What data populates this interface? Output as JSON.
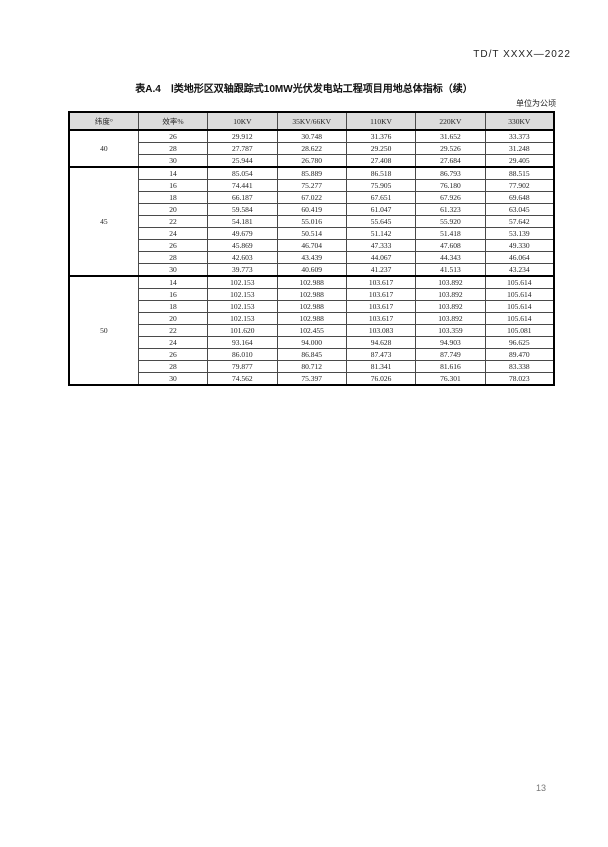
{
  "page": {
    "doc_ref": "TD/T XXXX—2022",
    "page_number": "13"
  },
  "colors": {
    "header_row_bg": "#dcdcdc",
    "table_border": "#000000",
    "text": "#1c1c1c",
    "page_number_text": "#777777"
  },
  "table": {
    "title": "表A.4　Ⅰ类地形区双轴跟踪式10MW光伏发电站工程项目用地总体指标（续）",
    "unit_note": "单位为公顷",
    "columns": [
      "纬度°",
      "效率%",
      "10KV",
      "35KV/66KV",
      "110KV",
      "220KV",
      "330KV"
    ],
    "groups": [
      {
        "latitude": "40",
        "rows": [
          [
            "26",
            "29.912",
            "30.748",
            "31.376",
            "31.652",
            "33.373"
          ],
          [
            "28",
            "27.787",
            "28.622",
            "29.250",
            "29.526",
            "31.248"
          ],
          [
            "30",
            "25.944",
            "26.780",
            "27.408",
            "27.684",
            "29.405"
          ]
        ]
      },
      {
        "latitude": "45",
        "rows": [
          [
            "14",
            "85.054",
            "85.889",
            "86.518",
            "86.793",
            "88.515"
          ],
          [
            "16",
            "74.441",
            "75.277",
            "75.905",
            "76.180",
            "77.902"
          ],
          [
            "18",
            "66.187",
            "67.022",
            "67.651",
            "67.926",
            "69.648"
          ],
          [
            "20",
            "59.584",
            "60.419",
            "61.047",
            "61.323",
            "63.045"
          ],
          [
            "22",
            "54.181",
            "55.016",
            "55.645",
            "55.920",
            "57.642"
          ],
          [
            "24",
            "49.679",
            "50.514",
            "51.142",
            "51.418",
            "53.139"
          ],
          [
            "26",
            "45.869",
            "46.704",
            "47.333",
            "47.608",
            "49.330"
          ],
          [
            "28",
            "42.603",
            "43.439",
            "44.067",
            "44.343",
            "46.064"
          ],
          [
            "30",
            "39.773",
            "40.609",
            "41.237",
            "41.513",
            "43.234"
          ]
        ]
      },
      {
        "latitude": "50",
        "rows": [
          [
            "14",
            "102.153",
            "102.988",
            "103.617",
            "103.892",
            "105.614"
          ],
          [
            "16",
            "102.153",
            "102.988",
            "103.617",
            "103.892",
            "105.614"
          ],
          [
            "18",
            "102.153",
            "102.988",
            "103.617",
            "103.892",
            "105.614"
          ],
          [
            "20",
            "102.153",
            "102.988",
            "103.617",
            "103.892",
            "105.614"
          ],
          [
            "22",
            "101.620",
            "102.455",
            "103.083",
            "103.359",
            "105.081"
          ],
          [
            "24",
            "93.164",
            "94.000",
            "94.628",
            "94.903",
            "96.625"
          ],
          [
            "26",
            "86.010",
            "86.845",
            "87.473",
            "87.749",
            "89.470"
          ],
          [
            "28",
            "79.877",
            "80.712",
            "81.341",
            "81.616",
            "83.338"
          ],
          [
            "30",
            "74.562",
            "75.397",
            "76.026",
            "76.301",
            "78.023"
          ]
        ]
      }
    ]
  }
}
